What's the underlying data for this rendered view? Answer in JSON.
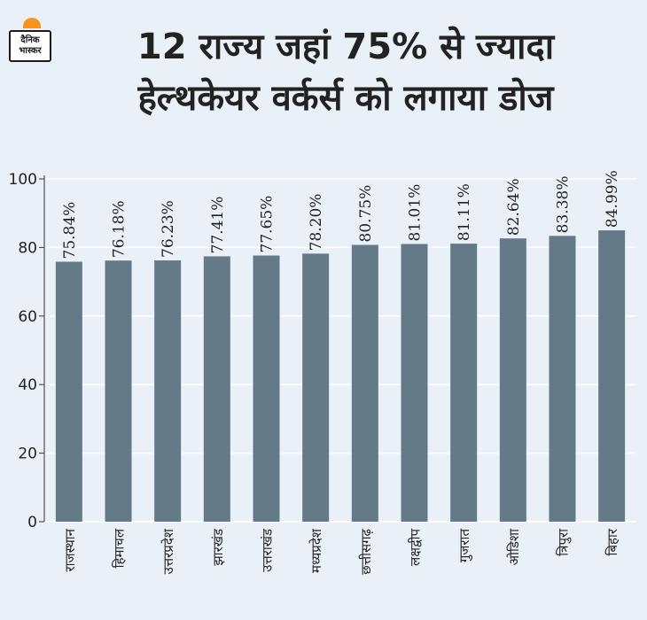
{
  "logo": {
    "line1": "दैनिक",
    "line2": "भास्कर"
  },
  "title": {
    "line1": "12 राज्य जहां 75% से ज्यादा",
    "line2": "हेल्थकेयर वर्कर्स को लगाया डोज"
  },
  "colors": {
    "bar": "#647a86",
    "background": "#eaf0f7",
    "grid": "#ffffff",
    "accent": "#f7941d"
  },
  "chart_data": {
    "type": "bar",
    "categories": [
      "राजस्थान",
      "हिमाचल",
      "उत्तरप्रदेश",
      "झारखंड",
      "उत्तराखंड",
      "मध्यप्रदेश",
      "छत्तीसगढ़",
      "लक्षद्वीप",
      "गुजरात",
      "ओडिशा",
      "त्रिपुरा",
      "बिहार"
    ],
    "values": [
      75.84,
      76.18,
      76.23,
      77.41,
      77.65,
      78.2,
      80.75,
      81.01,
      81.11,
      82.64,
      83.38,
      84.99
    ],
    "value_labels": [
      "75.84%",
      "76.18%",
      "76.23%",
      "77.41%",
      "77.65%",
      "78.20%",
      "80.75%",
      "81.01%",
      "81.11%",
      "82.64%",
      "83.38%",
      "84.99%"
    ],
    "y_ticks": [
      0,
      20,
      40,
      60,
      80,
      100
    ],
    "ylim": [
      0,
      100
    ],
    "grid": true,
    "title": "12 राज्य जहां 75% से ज्यादा हेल्थकेयर वर्कर्स को लगाया डोज",
    "xlabel": "",
    "ylabel": ""
  }
}
